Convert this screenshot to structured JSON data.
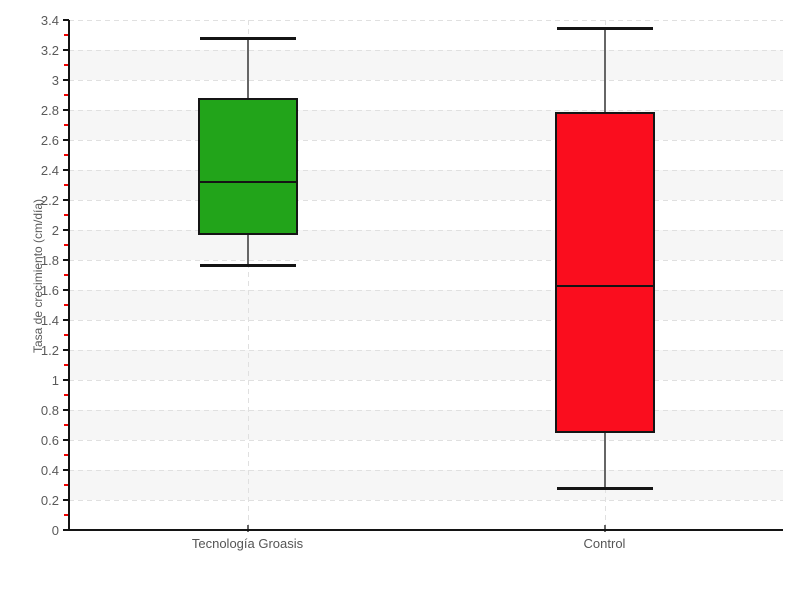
{
  "chart_data": {
    "type": "boxplot",
    "title": "",
    "xlabel": "",
    "ylabel": "Tasa de crecimiento (cm/día)",
    "ylim": [
      0,
      3.4
    ],
    "ytick_step": 0.2,
    "minor_tick_step": 0.1,
    "y_tick_labels": [
      "0",
      "0.2",
      "0.4",
      "0.6",
      "0.8",
      "1",
      "1.2",
      "1.4",
      "1.6",
      "1.8",
      "2",
      "2.2",
      "2.4",
      "2.6",
      "2.8",
      "3",
      "3.2",
      "3.4"
    ],
    "categories": [
      "Tecnología Groasis",
      "Control"
    ],
    "series": [
      {
        "name": "Tecnología Groasis",
        "color": "#22a41a",
        "min": 1.77,
        "q1": 1.97,
        "median": 2.32,
        "q3": 2.88,
        "max": 3.28
      },
      {
        "name": "Control",
        "color": "#fa0d1e",
        "min": 0.28,
        "q1": 0.65,
        "median": 1.63,
        "q3": 2.79,
        "max": 3.35
      }
    ],
    "legend_position": "none",
    "grid": {
      "horizontal": "dashed",
      "vertical_category_lines": "dashed",
      "alternating_bands": true
    }
  },
  "colors": {
    "background": "#ffffff",
    "band": "#f6f6f6",
    "gridline": "#e0e0e0",
    "axis": "#141414",
    "tick_label": "#5a5a5a",
    "axis_title": "#5a5a5a",
    "category_label": "#555555",
    "minor_tick": "#ee0000",
    "major_tick": "#141414",
    "whisker_line": "#666666",
    "whisker_cap": "#141414",
    "box_border": "#151515",
    "median_line": "#141414"
  }
}
